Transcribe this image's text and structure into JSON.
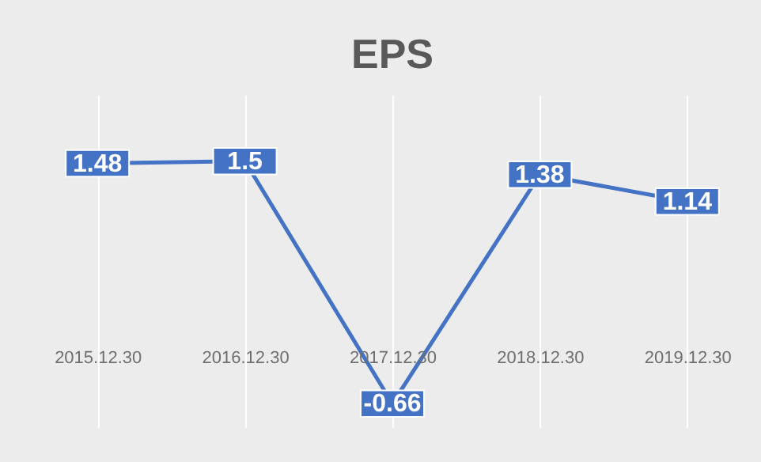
{
  "chart_data": {
    "type": "line",
    "title": "EPS",
    "categories": [
      "2015.12.30",
      "2016.12.30",
      "2017.12.30",
      "2018.12.30",
      "2019.12.30"
    ],
    "series": [
      {
        "color": "#4472c4",
        "values": [
          1.48,
          1.5,
          -0.66,
          1.38,
          1.14
        ]
      }
    ],
    "ylim": [
      -0.87,
      2.09
    ],
    "tick_labels": "x",
    "grid": "x",
    "data_labels": true,
    "marker": "square",
    "line_style": "solid"
  }
}
